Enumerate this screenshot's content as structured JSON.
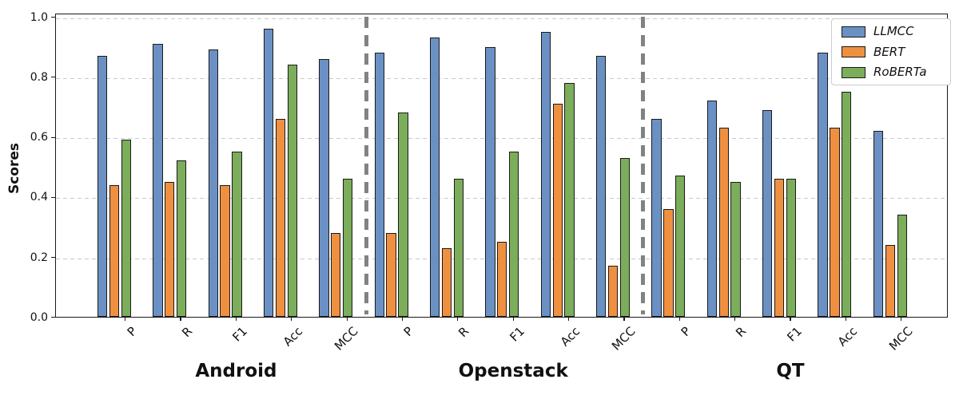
{
  "chart_data": {
    "type": "bar",
    "title": "",
    "xlabel": "",
    "ylabel": "Scores",
    "ylim": [
      0.0,
      1.0
    ],
    "yticks": [
      0.0,
      0.2,
      0.4,
      0.6,
      0.8,
      1.0
    ],
    "ytick_labels": [
      "0.0",
      "0.2",
      "0.4",
      "0.6",
      "0.8",
      "1.0"
    ],
    "grid": "horizontal-dashed",
    "group_separators": "thick-gray-vertical-dashed-between-groups",
    "legend_position": "upper-right",
    "groups": [
      "Android",
      "Openstack",
      "QT"
    ],
    "categories": [
      "P",
      "R",
      "F1",
      "Acc",
      "MCC"
    ],
    "series": [
      {
        "name": "LLMCC",
        "color": "#6b91c4",
        "values": [
          [
            0.87,
            0.91,
            0.89,
            0.96,
            0.86
          ],
          [
            0.88,
            0.93,
            0.9,
            0.95,
            0.87
          ],
          [
            0.66,
            0.72,
            0.69,
            0.88,
            0.62
          ]
        ]
      },
      {
        "name": "BERT",
        "color": "#ef9041",
        "values": [
          [
            0.44,
            0.45,
            0.44,
            0.66,
            0.28
          ],
          [
            0.28,
            0.23,
            0.25,
            0.71,
            0.17
          ],
          [
            0.36,
            0.63,
            0.46,
            0.63,
            0.24
          ]
        ]
      },
      {
        "name": "RoBERTa",
        "color": "#7bad5a",
        "values": [
          [
            0.59,
            0.52,
            0.55,
            0.84,
            0.46
          ],
          [
            0.68,
            0.46,
            0.55,
            0.78,
            0.53
          ],
          [
            0.47,
            0.45,
            0.46,
            0.75,
            0.34
          ]
        ]
      }
    ],
    "colors": {
      "bar_edge": "#1a1a1a",
      "gridline": "#c9c9c9",
      "separator": "#828282",
      "legend_border": "#cccccc",
      "text": "#111111"
    }
  }
}
